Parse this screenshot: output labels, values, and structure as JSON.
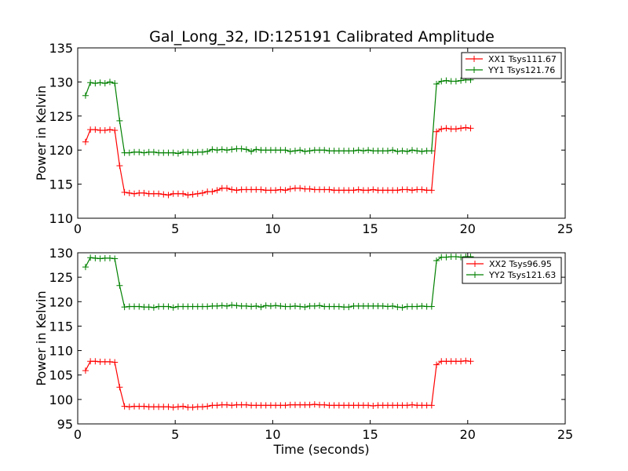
{
  "chart_data": [
    {
      "type": "line",
      "title": "Gal_Long_32, ID:125191 Calibrated Amplitude",
      "xlabel": "",
      "ylabel": "Power in Kelvin",
      "xlim": [
        0,
        25
      ],
      "ylim": [
        110,
        135
      ],
      "xticks": [
        0,
        5,
        10,
        15,
        20,
        25
      ],
      "yticks": [
        110,
        115,
        120,
        125,
        130,
        135
      ],
      "grid": false,
      "legend": "top-right",
      "series": [
        {
          "name": "XX1 Tsys111.67",
          "color": "#ff0000",
          "x": [
            0.4,
            0.65,
            0.9,
            1.15,
            1.4,
            1.65,
            1.9,
            2.15,
            2.4,
            2.65,
            2.9,
            3.15,
            3.4,
            3.65,
            3.9,
            4.15,
            4.4,
            4.65,
            4.9,
            5.15,
            5.4,
            5.65,
            5.9,
            6.15,
            6.4,
            6.65,
            6.9,
            7.15,
            7.4,
            7.65,
            7.9,
            8.15,
            8.4,
            8.65,
            8.9,
            9.15,
            9.4,
            9.65,
            9.9,
            10.15,
            10.4,
            10.65,
            10.9,
            11.15,
            11.4,
            11.65,
            11.9,
            12.15,
            12.4,
            12.65,
            12.9,
            13.15,
            13.4,
            13.65,
            13.9,
            14.15,
            14.4,
            14.65,
            14.9,
            15.15,
            15.4,
            15.65,
            15.9,
            16.15,
            16.4,
            16.65,
            16.9,
            17.15,
            17.4,
            17.65,
            17.9,
            18.15,
            18.4,
            18.65,
            18.9,
            19.15,
            19.4,
            19.65,
            19.9,
            20.15
          ],
          "values": [
            121.2,
            123.0,
            123.0,
            122.9,
            122.9,
            123.0,
            122.9,
            117.7,
            113.8,
            113.7,
            113.6,
            113.7,
            113.7,
            113.6,
            113.6,
            113.6,
            113.5,
            113.4,
            113.6,
            113.6,
            113.6,
            113.4,
            113.5,
            113.6,
            113.7,
            113.9,
            113.9,
            114.1,
            114.4,
            114.4,
            114.2,
            114.1,
            114.2,
            114.2,
            114.2,
            114.2,
            114.2,
            114.1,
            114.1,
            114.1,
            114.2,
            114.1,
            114.3,
            114.4,
            114.4,
            114.3,
            114.3,
            114.2,
            114.2,
            114.2,
            114.2,
            114.1,
            114.1,
            114.1,
            114.1,
            114.1,
            114.2,
            114.1,
            114.1,
            114.2,
            114.1,
            114.1,
            114.1,
            114.1,
            114.1,
            114.2,
            114.2,
            114.1,
            114.2,
            114.2,
            114.1,
            114.1,
            122.7,
            123.1,
            123.2,
            123.1,
            123.1,
            123.2,
            123.3,
            123.2
          ]
        },
        {
          "name": "YY1 Tsys121.76",
          "color": "#008000",
          "x": [
            0.4,
            0.65,
            0.9,
            1.15,
            1.4,
            1.65,
            1.9,
            2.15,
            2.4,
            2.65,
            2.9,
            3.15,
            3.4,
            3.65,
            3.9,
            4.15,
            4.4,
            4.65,
            4.9,
            5.15,
            5.4,
            5.65,
            5.9,
            6.15,
            6.4,
            6.65,
            6.9,
            7.15,
            7.4,
            7.65,
            7.9,
            8.15,
            8.4,
            8.65,
            8.9,
            9.15,
            9.4,
            9.65,
            9.9,
            10.15,
            10.4,
            10.65,
            10.9,
            11.15,
            11.4,
            11.65,
            11.9,
            12.15,
            12.4,
            12.65,
            12.9,
            13.15,
            13.4,
            13.65,
            13.9,
            14.15,
            14.4,
            14.65,
            14.9,
            15.15,
            15.4,
            15.65,
            15.9,
            16.15,
            16.4,
            16.65,
            16.9,
            17.15,
            17.4,
            17.65,
            17.9,
            18.15,
            18.4,
            18.65,
            18.9,
            19.15,
            19.4,
            19.65,
            19.9,
            20.15
          ],
          "values": [
            128.0,
            129.9,
            129.8,
            129.9,
            129.8,
            130.0,
            129.8,
            124.3,
            119.6,
            119.6,
            119.7,
            119.7,
            119.6,
            119.7,
            119.7,
            119.6,
            119.6,
            119.6,
            119.6,
            119.5,
            119.7,
            119.7,
            119.6,
            119.7,
            119.7,
            119.8,
            120.1,
            120.0,
            120.1,
            120.0,
            120.1,
            120.2,
            120.2,
            120.1,
            119.8,
            120.1,
            120.0,
            120.0,
            120.0,
            120.0,
            120.0,
            120.0,
            119.8,
            119.9,
            120.0,
            119.8,
            119.9,
            120.0,
            120.0,
            120.0,
            119.9,
            119.9,
            119.9,
            119.9,
            119.9,
            119.9,
            120.0,
            119.9,
            120.0,
            119.9,
            119.9,
            119.9,
            119.9,
            120.0,
            119.8,
            119.9,
            119.8,
            120.0,
            119.9,
            119.8,
            119.9,
            119.9,
            129.7,
            130.1,
            130.2,
            130.1,
            130.1,
            130.2,
            130.3,
            130.3
          ]
        }
      ]
    },
    {
      "type": "line",
      "title": "",
      "xlabel": "Time (seconds)",
      "ylabel": "Power in Kelvin",
      "xlim": [
        0,
        25
      ],
      "ylim": [
        95,
        130
      ],
      "xticks": [
        0,
        5,
        10,
        15,
        20,
        25
      ],
      "yticks": [
        95,
        100,
        105,
        110,
        115,
        120,
        125,
        130
      ],
      "grid": false,
      "legend": "top-right",
      "series": [
        {
          "name": "XX2 Tsys96.95",
          "color": "#ff0000",
          "x": [
            0.4,
            0.65,
            0.9,
            1.15,
            1.4,
            1.65,
            1.9,
            2.15,
            2.4,
            2.65,
            2.9,
            3.15,
            3.4,
            3.65,
            3.9,
            4.15,
            4.4,
            4.65,
            4.9,
            5.15,
            5.4,
            5.65,
            5.9,
            6.15,
            6.4,
            6.65,
            6.9,
            7.15,
            7.4,
            7.65,
            7.9,
            8.15,
            8.4,
            8.65,
            8.9,
            9.15,
            9.4,
            9.65,
            9.9,
            10.15,
            10.4,
            10.65,
            10.9,
            11.15,
            11.4,
            11.65,
            11.9,
            12.15,
            12.4,
            12.65,
            12.9,
            13.15,
            13.4,
            13.65,
            13.9,
            14.15,
            14.4,
            14.65,
            14.9,
            15.15,
            15.4,
            15.65,
            15.9,
            16.15,
            16.4,
            16.65,
            16.9,
            17.15,
            17.4,
            17.65,
            17.9,
            18.15,
            18.4,
            18.65,
            18.9,
            19.15,
            19.4,
            19.65,
            19.9,
            20.15
          ],
          "values": [
            105.9,
            107.8,
            107.8,
            107.7,
            107.7,
            107.7,
            107.6,
            102.5,
            98.6,
            98.5,
            98.6,
            98.6,
            98.6,
            98.5,
            98.5,
            98.5,
            98.5,
            98.5,
            98.4,
            98.5,
            98.6,
            98.4,
            98.4,
            98.5,
            98.5,
            98.6,
            98.8,
            98.8,
            98.9,
            98.9,
            98.8,
            98.9,
            98.9,
            98.9,
            98.8,
            98.8,
            98.8,
            98.8,
            98.8,
            98.8,
            98.8,
            98.8,
            98.9,
            98.9,
            98.9,
            98.9,
            98.9,
            99.0,
            98.9,
            98.9,
            98.8,
            98.8,
            98.8,
            98.8,
            98.8,
            98.8,
            98.8,
            98.8,
            98.8,
            98.7,
            98.8,
            98.8,
            98.8,
            98.8,
            98.8,
            98.8,
            98.8,
            98.9,
            98.8,
            98.8,
            98.8,
            98.8,
            107.1,
            107.8,
            107.8,
            107.8,
            107.8,
            107.8,
            107.9,
            107.8
          ]
        },
        {
          "name": "YY2 Tsys121.63",
          "color": "#008000",
          "x": [
            0.4,
            0.65,
            0.9,
            1.15,
            1.4,
            1.65,
            1.9,
            2.15,
            2.4,
            2.65,
            2.9,
            3.15,
            3.4,
            3.65,
            3.9,
            4.15,
            4.4,
            4.65,
            4.9,
            5.15,
            5.4,
            5.65,
            5.9,
            6.15,
            6.4,
            6.65,
            6.9,
            7.15,
            7.4,
            7.65,
            7.9,
            8.15,
            8.4,
            8.65,
            8.9,
            9.15,
            9.4,
            9.65,
            9.9,
            10.15,
            10.4,
            10.65,
            10.9,
            11.15,
            11.4,
            11.65,
            11.9,
            12.15,
            12.4,
            12.65,
            12.9,
            13.15,
            13.4,
            13.65,
            13.9,
            14.15,
            14.4,
            14.65,
            14.9,
            15.15,
            15.4,
            15.65,
            15.9,
            16.15,
            16.4,
            16.65,
            16.9,
            17.15,
            17.4,
            17.65,
            17.9,
            18.15,
            18.4,
            18.65,
            18.9,
            19.15,
            19.4,
            19.65,
            19.9,
            20.15
          ],
          "values": [
            127.1,
            129.0,
            128.9,
            128.8,
            128.9,
            128.9,
            128.8,
            123.3,
            118.9,
            119.0,
            119.0,
            119.0,
            118.9,
            118.9,
            118.8,
            119.0,
            119.0,
            119.0,
            118.8,
            119.0,
            119.0,
            119.0,
            119.0,
            119.0,
            119.0,
            119.0,
            119.1,
            119.1,
            119.2,
            119.1,
            119.3,
            119.2,
            119.1,
            119.1,
            119.0,
            119.1,
            118.9,
            119.2,
            119.1,
            119.2,
            119.1,
            119.0,
            119.0,
            119.1,
            119.0,
            118.9,
            119.1,
            119.1,
            119.2,
            119.0,
            119.0,
            119.0,
            119.0,
            118.9,
            118.9,
            119.1,
            119.1,
            119.1,
            119.1,
            119.1,
            119.1,
            119.1,
            119.0,
            119.1,
            118.9,
            118.8,
            119.0,
            119.0,
            119.0,
            119.1,
            119.0,
            119.0,
            128.4,
            129.1,
            129.1,
            129.2,
            129.2,
            129.1,
            129.2,
            129.2
          ]
        }
      ]
    }
  ]
}
